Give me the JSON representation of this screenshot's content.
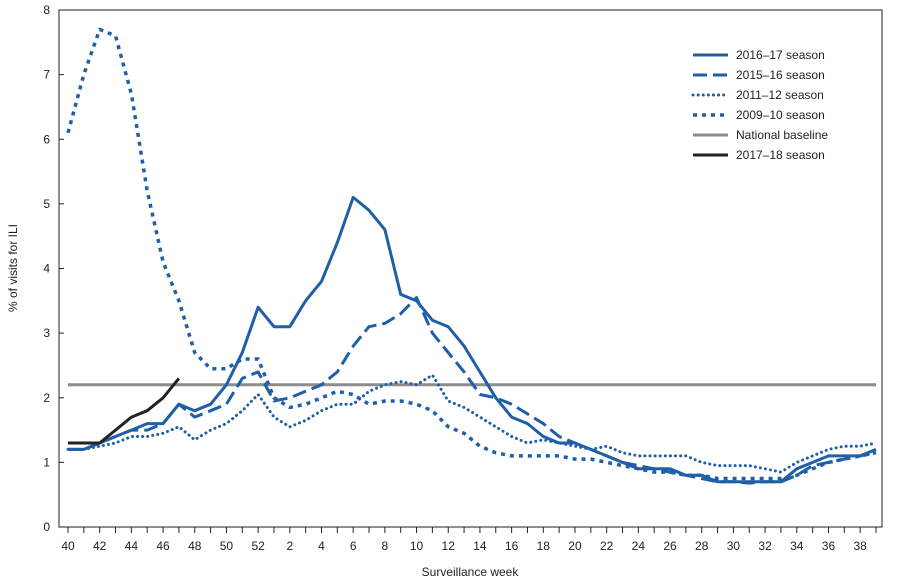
{
  "chart_data": {
    "type": "line",
    "title": "",
    "xlabel": "Surveillance week",
    "ylabel": "% of visits for ILI",
    "ylim": [
      0,
      8
    ],
    "yticks": [
      "0",
      "1",
      "2",
      "3",
      "4",
      "5",
      "6",
      "7",
      "8"
    ],
    "weeks": [
      40,
      41,
      42,
      43,
      44,
      45,
      46,
      47,
      48,
      49,
      50,
      51,
      52,
      1,
      2,
      3,
      4,
      5,
      6,
      7,
      8,
      9,
      10,
      11,
      12,
      13,
      14,
      15,
      16,
      17,
      18,
      19,
      20,
      21,
      22,
      23,
      24,
      25,
      26,
      27,
      28,
      29,
      30,
      31,
      32,
      33,
      34,
      35,
      36,
      37,
      38,
      39
    ],
    "xtick_labels": [
      "40",
      "42",
      "44",
      "46",
      "48",
      "50",
      "52",
      "2",
      "4",
      "6",
      "8",
      "10",
      "12",
      "14",
      "16",
      "18",
      "20",
      "22",
      "24",
      "26",
      "28",
      "30",
      "32",
      "34",
      "36",
      "38"
    ],
    "legend_position": "top-right",
    "series": [
      {
        "name": "2016–17 season",
        "color": "#1f5fa8",
        "style": "solid",
        "values": [
          1.2,
          1.2,
          1.3,
          1.4,
          1.5,
          1.6,
          1.6,
          1.9,
          1.8,
          1.9,
          2.2,
          2.7,
          3.4,
          3.1,
          3.1,
          3.5,
          3.8,
          4.4,
          5.1,
          4.9,
          4.6,
          3.6,
          3.5,
          3.2,
          3.1,
          2.8,
          2.4,
          2.0,
          1.7,
          1.6,
          1.4,
          1.3,
          1.3,
          1.2,
          1.1,
          1.0,
          0.9,
          0.9,
          0.9,
          0.8,
          0.8,
          0.7,
          0.7,
          0.7,
          0.7,
          0.7,
          0.9,
          1.0,
          1.1,
          1.1,
          1.1,
          1.2
        ]
      },
      {
        "name": "2015–16 season",
        "color": "#1f5fa8",
        "style": "dash",
        "values": [
          1.2,
          1.2,
          1.3,
          1.4,
          1.5,
          1.5,
          1.6,
          1.9,
          1.7,
          1.8,
          1.9,
          2.3,
          2.4,
          1.95,
          2.0,
          2.1,
          2.2,
          2.4,
          2.8,
          3.1,
          3.15,
          3.3,
          3.55,
          3.0,
          2.7,
          2.4,
          2.05,
          2.0,
          1.9,
          1.75,
          1.6,
          1.4,
          1.3,
          1.2,
          1.1,
          1.0,
          0.95,
          0.9,
          0.85,
          0.8,
          0.75,
          0.7,
          0.7,
          0.68,
          0.7,
          0.7,
          0.8,
          0.95,
          1.0,
          1.05,
          1.1,
          1.15
        ]
      },
      {
        "name": "2011–12 season",
        "color": "#1f5fa8",
        "style": "dot",
        "values": [
          1.2,
          1.2,
          1.25,
          1.3,
          1.4,
          1.4,
          1.45,
          1.55,
          1.35,
          1.5,
          1.6,
          1.8,
          2.05,
          1.7,
          1.55,
          1.65,
          1.8,
          1.9,
          1.9,
          2.1,
          2.2,
          2.25,
          2.2,
          2.35,
          1.95,
          1.85,
          1.7,
          1.55,
          1.4,
          1.3,
          1.35,
          1.3,
          1.25,
          1.2,
          1.25,
          1.15,
          1.1,
          1.1,
          1.1,
          1.1,
          1.0,
          0.95,
          0.95,
          0.95,
          0.9,
          0.85,
          1.0,
          1.1,
          1.2,
          1.25,
          1.25,
          1.3
        ]
      },
      {
        "name": "2009–10 season",
        "color": "#1f5fa8",
        "style": "square-dot",
        "values": [
          6.1,
          7.0,
          7.7,
          7.6,
          6.7,
          5.2,
          4.1,
          3.5,
          2.7,
          2.45,
          2.45,
          2.6,
          2.6,
          2.0,
          1.85,
          1.9,
          2.0,
          2.1,
          2.05,
          1.9,
          1.95,
          1.95,
          1.9,
          1.8,
          1.55,
          1.45,
          1.25,
          1.15,
          1.1,
          1.1,
          1.1,
          1.1,
          1.05,
          1.05,
          1.0,
          0.95,
          0.9,
          0.85,
          0.85,
          0.8,
          0.8,
          0.75,
          0.75,
          0.75,
          0.75,
          0.75,
          0.8,
          0.9,
          1.0,
          1.05,
          1.1,
          1.15
        ]
      },
      {
        "name": "National baseline",
        "color": "#8c8c8c",
        "style": "solid",
        "values": [
          2.2,
          2.2,
          2.2,
          2.2,
          2.2,
          2.2,
          2.2,
          2.2,
          2.2,
          2.2,
          2.2,
          2.2,
          2.2,
          2.2,
          2.2,
          2.2,
          2.2,
          2.2,
          2.2,
          2.2,
          2.2,
          2.2,
          2.2,
          2.2,
          2.2,
          2.2,
          2.2,
          2.2,
          2.2,
          2.2,
          2.2,
          2.2,
          2.2,
          2.2,
          2.2,
          2.2,
          2.2,
          2.2,
          2.2,
          2.2,
          2.2,
          2.2,
          2.2,
          2.2,
          2.2,
          2.2,
          2.2,
          2.2,
          2.2,
          2.2,
          2.2,
          2.2
        ]
      },
      {
        "name": "2017–18 season",
        "color": "#222222",
        "style": "solid",
        "values": [
          1.3,
          1.3,
          1.3,
          1.5,
          1.7,
          1.8,
          2.0,
          2.3
        ]
      }
    ]
  }
}
